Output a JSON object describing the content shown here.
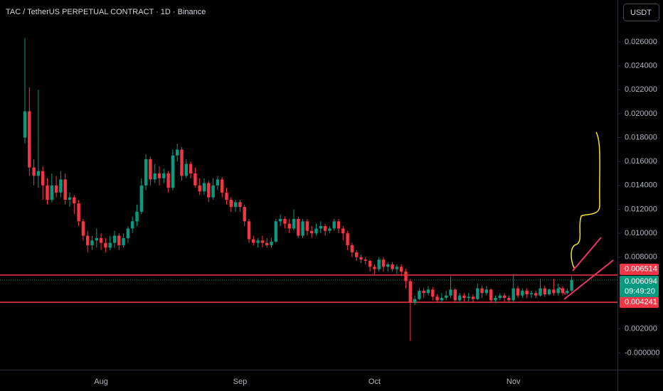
{
  "chart_data": {
    "type": "candlestick",
    "title": "TAC / TetherUS PERPETUAL CONTRACT · 1D · Binance",
    "currency": "USDT",
    "categories": [
      null,
      null,
      null,
      null,
      null,
      null,
      null,
      null,
      null,
      null,
      null,
      null,
      null,
      null,
      null,
      null,
      null,
      "Aug",
      null,
      null,
      null,
      null,
      null,
      null,
      null,
      null,
      null,
      null,
      null,
      null,
      null,
      null,
      null,
      null,
      null,
      null,
      null,
      null,
      null,
      null,
      null,
      null,
      null,
      null,
      null,
      null,
      null,
      null,
      "Sep",
      null,
      null,
      null,
      null,
      null,
      null,
      null,
      null,
      null,
      null,
      null,
      null,
      null,
      null,
      null,
      null,
      null,
      null,
      null,
      null,
      null,
      null,
      null,
      null,
      null,
      null,
      null,
      null,
      null,
      "Oct",
      null,
      null,
      null,
      null,
      null,
      null,
      null,
      null,
      null,
      null,
      null,
      null,
      null,
      null,
      null,
      null,
      null,
      null,
      null,
      null,
      null,
      null,
      null,
      null,
      null,
      null,
      null,
      null,
      null,
      null,
      "Nov",
      null,
      null,
      null,
      null,
      null,
      null,
      null,
      null,
      null,
      null,
      null,
      null,
      null
    ],
    "open": [
      0.018,
      0.0202,
      0.0155,
      0.0148,
      0.0152,
      0.014,
      0.0128,
      0.014,
      0.0134,
      0.0145,
      0.0128,
      0.013,
      0.0125,
      0.011,
      0.0098,
      0.009,
      0.0094,
      0.0096,
      0.0092,
      0.0088,
      0.0092,
      0.0098,
      0.009,
      0.0096,
      0.0104,
      0.011,
      0.0118,
      0.014,
      0.0162,
      0.0145,
      0.015,
      0.0146,
      0.015,
      0.0138,
      0.0165,
      0.017,
      0.0148,
      0.0158,
      0.015,
      0.014,
      0.0135,
      0.0142,
      0.013,
      0.014,
      0.0145,
      0.0134,
      0.0128,
      0.0122,
      0.0126,
      0.0122,
      0.011,
      0.0095,
      0.0092,
      0.0094,
      0.0092,
      0.009,
      0.0093,
      0.011,
      0.0112,
      0.0108,
      0.0104,
      0.0112,
      0.0098,
      0.011,
      0.0102,
      0.01,
      0.0104,
      0.0106,
      0.0102,
      0.0104,
      0.011,
      0.0104,
      0.01,
      0.009,
      0.0084,
      0.008,
      0.0078,
      0.0077,
      0.0072,
      0.007,
      0.0078,
      0.0072,
      0.0074,
      0.007,
      0.0072,
      0.0068,
      0.006,
      0.0042,
      0.0045,
      0.0052,
      0.005,
      0.0053,
      0.0047,
      0.0044,
      0.0046,
      0.0048,
      0.0053,
      0.0044,
      0.0048,
      0.0046,
      0.0047,
      0.0045,
      0.0054,
      0.005,
      0.0053,
      0.0044,
      0.0046,
      0.0048,
      0.0046,
      0.0044,
      0.0054,
      0.0048,
      0.0052,
      0.0049,
      0.005,
      0.0048,
      0.0054,
      0.0049,
      0.0053,
      0.005,
      0.0054,
      0.005,
      0.0052
    ],
    "high": [
      0.0263,
      0.0222,
      0.0162,
      0.022,
      0.0156,
      0.0146,
      0.015,
      0.0148,
      0.0152,
      0.015,
      0.0134,
      0.0132,
      0.0128,
      0.0112,
      0.0102,
      0.0098,
      0.0104,
      0.01,
      0.0096,
      0.0098,
      0.0102,
      0.01,
      0.01,
      0.0106,
      0.0114,
      0.0124,
      0.0146,
      0.0166,
      0.0164,
      0.0158,
      0.0156,
      0.0154,
      0.0152,
      0.017,
      0.0175,
      0.0172,
      0.0162,
      0.016,
      0.0155,
      0.0146,
      0.0146,
      0.0144,
      0.0146,
      0.0148,
      0.0147,
      0.0138,
      0.013,
      0.0128,
      0.0128,
      0.0124,
      0.0112,
      0.0098,
      0.0096,
      0.0098,
      0.0096,
      0.0096,
      0.0112,
      0.0116,
      0.0114,
      0.0112,
      0.012,
      0.0114,
      0.0112,
      0.0112,
      0.0106,
      0.0108,
      0.011,
      0.0108,
      0.0106,
      0.0112,
      0.0112,
      0.0106,
      0.0102,
      0.0092,
      0.0086,
      0.0082,
      0.008,
      0.0078,
      0.0074,
      0.008,
      0.008,
      0.0076,
      0.0076,
      0.0074,
      0.0074,
      0.007,
      0.0062,
      0.0048,
      0.0054,
      0.0054,
      0.0056,
      0.0055,
      0.0049,
      0.005,
      0.0052,
      0.0064,
      0.0054,
      0.005,
      0.005,
      0.005,
      0.0049,
      0.0058,
      0.0056,
      0.0056,
      0.0054,
      0.0048,
      0.005,
      0.005,
      0.0048,
      0.0066,
      0.0056,
      0.0054,
      0.0054,
      0.0052,
      0.0052,
      0.0062,
      0.0056,
      0.0054,
      0.0062,
      0.0058,
      0.0056,
      0.0054,
      0.0064
    ],
    "low": [
      0.0175,
      0.0148,
      0.014,
      0.0138,
      0.0128,
      0.0124,
      0.0126,
      0.013,
      0.013,
      0.0124,
      0.0122,
      0.0116,
      0.0106,
      0.0094,
      0.0084,
      0.0086,
      0.0088,
      0.0086,
      0.0084,
      0.0086,
      0.0088,
      0.0086,
      0.0088,
      0.0092,
      0.01,
      0.0106,
      0.0116,
      0.0136,
      0.014,
      0.0142,
      0.014,
      0.0142,
      0.0134,
      0.0136,
      0.016,
      0.0144,
      0.0146,
      0.0146,
      0.0138,
      0.0132,
      0.0132,
      0.0126,
      0.0128,
      0.0136,
      0.013,
      0.0124,
      0.0118,
      0.0118,
      0.0118,
      0.0106,
      0.0092,
      0.009,
      0.0088,
      0.0088,
      0.0088,
      0.0088,
      0.0092,
      0.0106,
      0.0104,
      0.01,
      0.0102,
      0.0096,
      0.0096,
      0.0098,
      0.0096,
      0.0098,
      0.01,
      0.0098,
      0.01,
      0.0102,
      0.01,
      0.0094,
      0.0086,
      0.008,
      0.0077,
      0.0075,
      0.0074,
      0.0068,
      0.0066,
      0.0068,
      0.0068,
      0.0068,
      0.0068,
      0.0066,
      0.0064,
      0.0054,
      0.001,
      0.004,
      0.0044,
      0.0046,
      0.0048,
      0.0044,
      0.0042,
      0.0042,
      0.0044,
      0.0046,
      0.0042,
      0.0042,
      0.0043,
      0.0043,
      0.0042,
      0.0044,
      0.0046,
      0.0048,
      0.0042,
      0.0042,
      0.0044,
      0.0043,
      0.0042,
      0.0042,
      0.0046,
      0.0046,
      0.0046,
      0.0046,
      0.0046,
      0.0047,
      0.0047,
      0.0048,
      0.0048,
      0.0048,
      0.0048,
      0.0049,
      0.0051
    ],
    "close": [
      0.0202,
      0.0155,
      0.0148,
      0.0152,
      0.014,
      0.0128,
      0.014,
      0.0134,
      0.0145,
      0.0128,
      0.013,
      0.0125,
      0.011,
      0.0098,
      0.009,
      0.0094,
      0.0096,
      0.0092,
      0.0088,
      0.0092,
      0.0098,
      0.009,
      0.0096,
      0.0104,
      0.011,
      0.0118,
      0.014,
      0.0162,
      0.0145,
      0.015,
      0.0146,
      0.015,
      0.0138,
      0.0165,
      0.017,
      0.0148,
      0.0158,
      0.015,
      0.014,
      0.0135,
      0.0142,
      0.013,
      0.014,
      0.0145,
      0.0134,
      0.0128,
      0.0122,
      0.0126,
      0.0122,
      0.011,
      0.0095,
      0.0092,
      0.0094,
      0.0092,
      0.009,
      0.0093,
      0.011,
      0.0112,
      0.0108,
      0.0104,
      0.0112,
      0.0098,
      0.011,
      0.0102,
      0.01,
      0.0104,
      0.0106,
      0.0102,
      0.0104,
      0.011,
      0.0104,
      0.01,
      0.009,
      0.0084,
      0.008,
      0.0078,
      0.0077,
      0.0072,
      0.007,
      0.0078,
      0.0072,
      0.0074,
      0.007,
      0.0072,
      0.0068,
      0.006,
      0.0042,
      0.0045,
      0.0052,
      0.005,
      0.0053,
      0.0047,
      0.0044,
      0.0046,
      0.0048,
      0.0053,
      0.0044,
      0.0048,
      0.0046,
      0.0047,
      0.0045,
      0.0054,
      0.005,
      0.0053,
      0.0044,
      0.0046,
      0.0048,
      0.0046,
      0.0044,
      0.0054,
      0.0048,
      0.0052,
      0.0049,
      0.005,
      0.0048,
      0.0054,
      0.0049,
      0.0053,
      0.005,
      0.0054,
      0.005,
      0.0052,
      0.006094
    ],
    "up_color": "#089981",
    "down_color": "#f23645",
    "ylim": [
      -0.0014,
      0.0295
    ],
    "yticks": [
      {
        "value": 0.026,
        "label": "0.026000"
      },
      {
        "value": 0.024,
        "label": "0.024000"
      },
      {
        "value": 0.022,
        "label": "0.022000"
      },
      {
        "value": 0.02,
        "label": "0.020000"
      },
      {
        "value": 0.018,
        "label": "0.018000"
      },
      {
        "value": 0.016,
        "label": "0.016000"
      },
      {
        "value": 0.014,
        "label": "0.014000"
      },
      {
        "value": 0.012,
        "label": "0.012000"
      },
      {
        "value": 0.01,
        "label": "0.010000"
      },
      {
        "value": 0.008,
        "label": "0.008000"
      },
      {
        "value": 0.002,
        "label": "0.002000"
      },
      {
        "value": 0,
        "label": "-0.000000"
      }
    ],
    "price_lines": [
      {
        "value": 0.006514,
        "color": "#f23645"
      },
      {
        "value": 0.004241,
        "color": "#f23645"
      }
    ],
    "last_price": 0.006094,
    "countdown": "09:49:20"
  }
}
